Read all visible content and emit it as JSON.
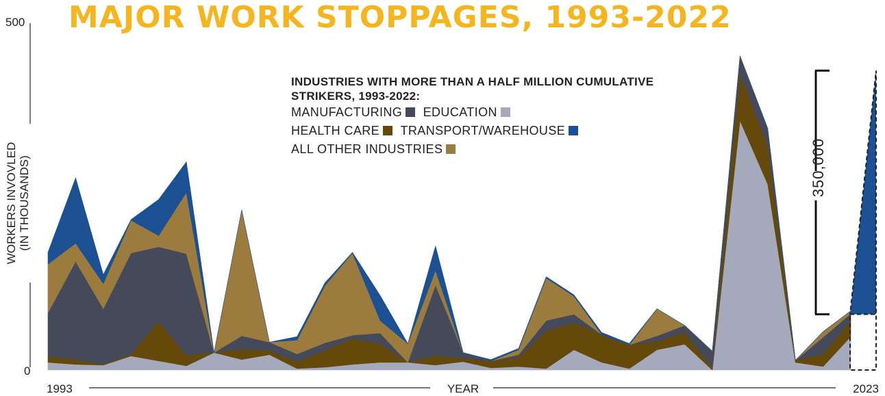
{
  "chart_data": {
    "type": "area",
    "stacked": true,
    "title": "MAJOR WORK STOPPAGES, 1993-2022",
    "legend_title": "INDUSTRIES WITH MORE THAN A HALF MILLION CUMULATIVE STRIKERS, 1993-2022:",
    "xlabel": "YEAR",
    "ylabel": "WORKERS INVOVLED (IN THOUSANDS)",
    "x_start_label": "1993",
    "x_end_label": "2023",
    "ylim": [
      0,
      500
    ],
    "y_ticks": [
      "500",
      "0"
    ],
    "x": [
      1993,
      1994,
      1995,
      1996,
      1997,
      1998,
      1999,
      2000,
      2001,
      2002,
      2003,
      2004,
      2005,
      2006,
      2007,
      2008,
      2009,
      2010,
      2011,
      2012,
      2013,
      2014,
      2015,
      2016,
      2017,
      2018,
      2019,
      2020,
      2021,
      2022
    ],
    "series": [
      {
        "name": "EDUCATION",
        "color": "#a5a9bc",
        "values": [
          11,
          8,
          7,
          20,
          13,
          6,
          25,
          15,
          22,
          2,
          4,
          8,
          11,
          11,
          7,
          12,
          3,
          5,
          2,
          29,
          11,
          2,
          29,
          37,
          0,
          358,
          267,
          11,
          5,
          48
        ]
      },
      {
        "name": "HEALTH CARE",
        "color": "#65490a",
        "values": [
          9,
          7,
          1,
          3,
          57,
          15,
          0,
          15,
          6,
          10,
          24,
          37,
          27,
          0,
          14,
          5,
          10,
          13,
          54,
          39,
          40,
          34,
          12,
          17,
          3,
          68,
          54,
          3,
          18,
          23
        ]
      },
      {
        "name": "MANUFACTURING",
        "color": "#444a5a",
        "values": [
          62,
          141,
          80,
          145,
          107,
          146,
          0,
          19,
          12,
          11,
          11,
          5,
          15,
          0,
          101,
          8,
          0,
          4,
          15,
          12,
          0,
          0,
          8,
          10,
          24,
          25,
          26,
          0,
          24,
          10
        ]
      },
      {
        "name": "ALL OTHER INDUSTRIES",
        "color": "#9c7b3e",
        "values": [
          70,
          26,
          36,
          47,
          16,
          88,
          0,
          181,
          0,
          20,
          82,
          118,
          18,
          27,
          21,
          0,
          0,
          7,
          61,
          26,
          0,
          0,
          39,
          0,
          0,
          0,
          0,
          0,
          8,
          4
        ]
      },
      {
        "name": "TRANSPORT/WAREHOUSE",
        "color": "#1b5192",
        "values": [
          17,
          94,
          13,
          1,
          52,
          44,
          0,
          0,
          0,
          5,
          4,
          1,
          36,
          0,
          35,
          0,
          2,
          2,
          2,
          2,
          3,
          2,
          0,
          0,
          0,
          0,
          0,
          0,
          0,
          0
        ]
      }
    ],
    "annotation_2023": {
      "label": "350,000",
      "value": 350,
      "base_value": 80,
      "color": "#1b5192"
    },
    "colors": {
      "title": "#f5b51f",
      "axis": "#222222"
    }
  }
}
